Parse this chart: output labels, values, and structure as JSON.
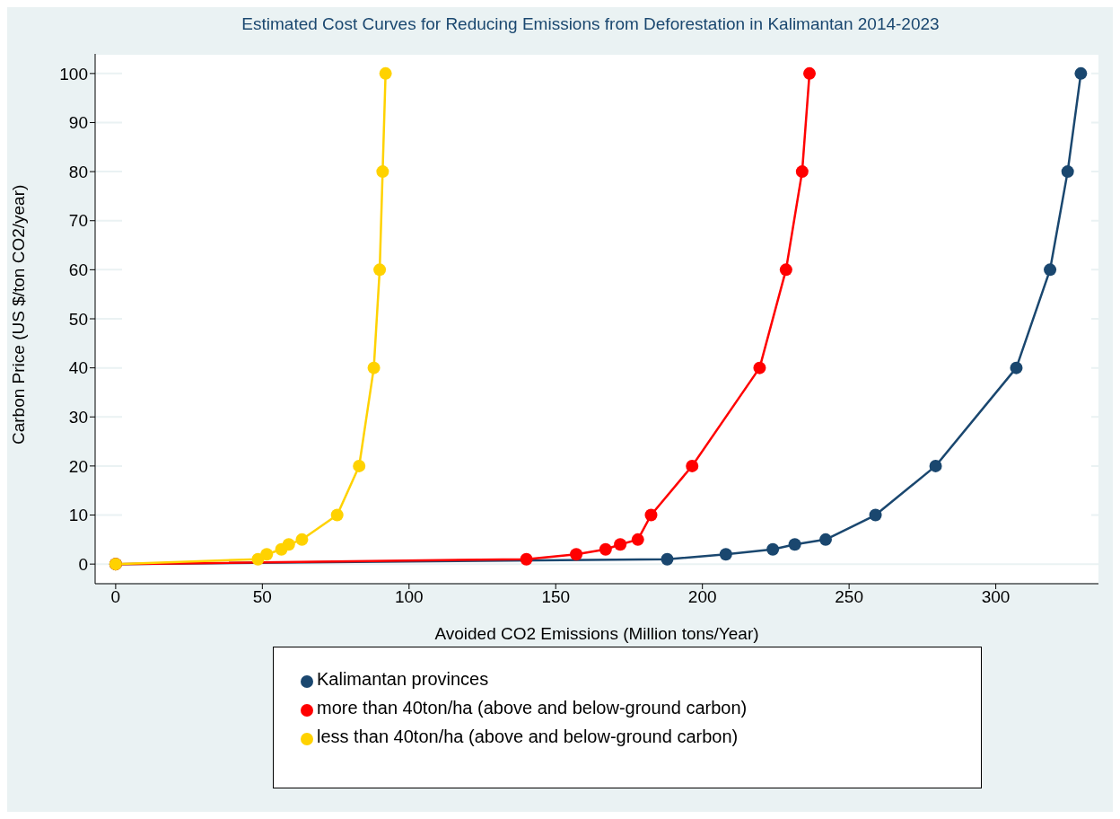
{
  "chart_data": {
    "type": "line",
    "title": "Estimated Cost Curves for Reducing Emissions from Deforestation in Kalimantan 2014-2023",
    "xlabel": "Avoided CO2 Emissions (Million tons/Year)",
    "ylabel": "Carbon Price (US $/ton CO2/year)",
    "xlim": [
      -7,
      335
    ],
    "xticks": [
      0,
      50,
      100,
      150,
      200,
      250,
      300
    ],
    "ylim": [
      -4,
      104
    ],
    "yticks": [
      0,
      10,
      20,
      30,
      40,
      50,
      60,
      70,
      80,
      90,
      100
    ],
    "grid": "y",
    "legend": "bottom",
    "marker": "circle",
    "line_style": "solid",
    "series": [
      {
        "name": "Kalimantan provinces",
        "color": "#1a476f",
        "x": [
          0,
          188,
          208,
          224,
          231.5,
          242,
          259,
          279.5,
          307,
          318.5,
          324.5,
          329
        ],
        "values": [
          0,
          1,
          2,
          3,
          4,
          5,
          10,
          20,
          40,
          60,
          80,
          100
        ]
      },
      {
        "name": "more than 40ton/ha (above and below-ground carbon)",
        "color": "#ff0000",
        "x": [
          0,
          140,
          157,
          167,
          172,
          178,
          182.5,
          196.5,
          219.5,
          228.5,
          234,
          236.5
        ],
        "values": [
          0,
          1,
          2,
          3,
          4,
          5,
          10,
          20,
          40,
          60,
          80,
          100
        ]
      },
      {
        "name": "less than 40ton/ha (above and below-ground carbon)",
        "color": "#ffd200",
        "x": [
          0,
          48.5,
          51.5,
          56.5,
          59,
          63.5,
          75.5,
          83,
          88,
          90,
          91,
          92
        ],
        "values": [
          0,
          1,
          2,
          3,
          4,
          5,
          10,
          20,
          40,
          60,
          80,
          100
        ]
      }
    ]
  }
}
